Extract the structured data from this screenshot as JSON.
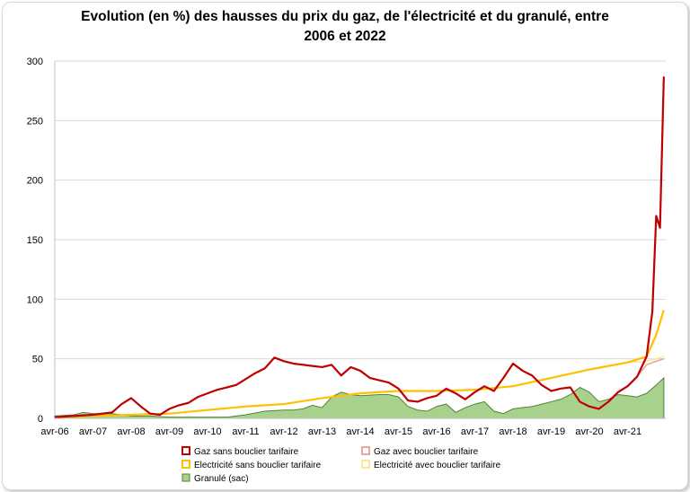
{
  "title_line1": "Evolution (en %) des hausses du prix du gaz, de l'électricité et du granulé, entre",
  "title_line2": "2006 et 2022",
  "colors": {
    "gaz": "#c00000",
    "gaz_bouclier": "#e6a8a0",
    "elec": "#ffc000",
    "elec_bouclier": "#ffe699",
    "granule_fill": "#a9d18e",
    "granule_stroke": "#548235"
  },
  "chart_data": {
    "type": "line",
    "title": "Evolution (en %) des hausses du prix du gaz, de l'électricité et du granulé, entre 2006 et 2022",
    "xlabel": "",
    "ylabel": "",
    "ylim": [
      0,
      300
    ],
    "yticks": [
      0,
      50,
      100,
      150,
      200,
      250,
      300
    ],
    "xlim": [
      2006.25,
      2022.25
    ],
    "xtick_labels": [
      "avr-06",
      "avr-07",
      "avr-08",
      "avr-09",
      "avr-10",
      "avr-11",
      "avr-12",
      "avr-13",
      "avr-14",
      "avr-15",
      "avr-16",
      "avr-17",
      "avr-18",
      "avr-19",
      "avr-20",
      "avr-21"
    ],
    "grid": "horizontal",
    "legend_position": "bottom",
    "series": [
      {
        "name": "Gaz sans bouclier tarifaire",
        "style": "line",
        "x": [
          2006.25,
          2006.75,
          2007.25,
          2007.75,
          2008.0,
          2008.25,
          2008.5,
          2008.75,
          2009.0,
          2009.25,
          2009.5,
          2009.75,
          2010.0,
          2010.25,
          2010.5,
          2010.75,
          2011.0,
          2011.25,
          2011.5,
          2011.75,
          2012.0,
          2012.25,
          2012.5,
          2012.75,
          2013.0,
          2013.25,
          2013.5,
          2013.75,
          2014.0,
          2014.25,
          2014.5,
          2014.75,
          2015.0,
          2015.25,
          2015.5,
          2015.75,
          2016.0,
          2016.25,
          2016.5,
          2016.75,
          2017.0,
          2017.25,
          2017.5,
          2017.75,
          2018.0,
          2018.25,
          2018.5,
          2018.75,
          2019.0,
          2019.25,
          2019.5,
          2019.75,
          2020.0,
          2020.25,
          2020.5,
          2020.75,
          2021.0,
          2021.25,
          2021.5,
          2021.75,
          2021.9,
          2022.0,
          2022.1,
          2022.2
        ],
        "y": [
          1,
          2,
          3,
          5,
          12,
          17,
          10,
          4,
          3,
          8,
          11,
          13,
          18,
          21,
          24,
          26,
          28,
          33,
          38,
          42,
          51,
          48,
          46,
          45,
          44,
          43,
          45,
          36,
          43,
          40,
          34,
          32,
          30,
          25,
          15,
          14,
          17,
          19,
          25,
          21,
          16,
          22,
          27,
          23,
          34,
          46,
          40,
          36,
          28,
          23,
          25,
          26,
          14,
          10,
          8,
          14,
          22,
          27,
          35,
          52,
          90,
          170,
          160,
          287
        ]
      },
      {
        "name": "Gaz avec bouclier tarifaire",
        "style": "line",
        "x": [
          2019.75,
          2020.0,
          2020.25,
          2020.5,
          2020.75,
          2021.0,
          2021.25,
          2021.5,
          2021.75,
          2022.0,
          2022.2
        ],
        "y": [
          26,
          14,
          10,
          8,
          14,
          22,
          27,
          35,
          45,
          48,
          50
        ]
      },
      {
        "name": "Electricité sans bouclier tarifaire",
        "style": "line",
        "x": [
          2006.25,
          2007.25,
          2008.25,
          2009.25,
          2010.25,
          2011.25,
          2012.25,
          2013.25,
          2014.25,
          2015.25,
          2016.25,
          2017.25,
          2018.25,
          2019.25,
          2020.25,
          2021.25,
          2021.75,
          2022.0,
          2022.2
        ],
        "y": [
          1,
          2,
          3,
          4,
          7,
          10,
          12,
          17,
          21,
          23,
          23,
          24,
          27,
          34,
          41,
          47,
          52,
          70,
          91
        ]
      },
      {
        "name": "Electricité avec bouclier tarifaire",
        "style": "line",
        "x": [
          2021.25,
          2021.75,
          2022.0,
          2022.2
        ],
        "y": [
          47,
          48,
          50,
          52
        ]
      },
      {
        "name": "Granulé (sac)",
        "style": "area",
        "x": [
          2006.25,
          2006.75,
          2007.0,
          2007.25,
          2007.75,
          2008.0,
          2008.25,
          2008.75,
          2009.25,
          2009.75,
          2010.25,
          2010.75,
          2011.25,
          2011.75,
          2012.25,
          2012.5,
          2012.75,
          2013.0,
          2013.25,
          2013.5,
          2013.75,
          2014.0,
          2014.25,
          2014.75,
          2015.0,
          2015.25,
          2015.5,
          2015.75,
          2016.0,
          2016.25,
          2016.5,
          2016.75,
          2017.0,
          2017.25,
          2017.5,
          2017.75,
          2018.0,
          2018.25,
          2018.75,
          2019.0,
          2019.25,
          2019.5,
          2019.75,
          2020.0,
          2020.25,
          2020.5,
          2020.75,
          2021.0,
          2021.25,
          2021.5,
          2021.75,
          2022.0,
          2022.2
        ],
        "y": [
          2,
          3,
          5,
          4,
          4,
          3,
          2,
          2,
          1,
          1,
          1,
          1,
          3,
          6,
          7,
          7,
          8,
          11,
          9,
          18,
          22,
          20,
          19,
          20,
          20,
          18,
          10,
          7,
          6,
          10,
          12,
          5,
          9,
          12,
          14,
          6,
          4,
          8,
          10,
          12,
          14,
          16,
          20,
          26,
          22,
          14,
          16,
          20,
          19,
          18,
          21,
          28,
          34
        ]
      }
    ]
  }
}
